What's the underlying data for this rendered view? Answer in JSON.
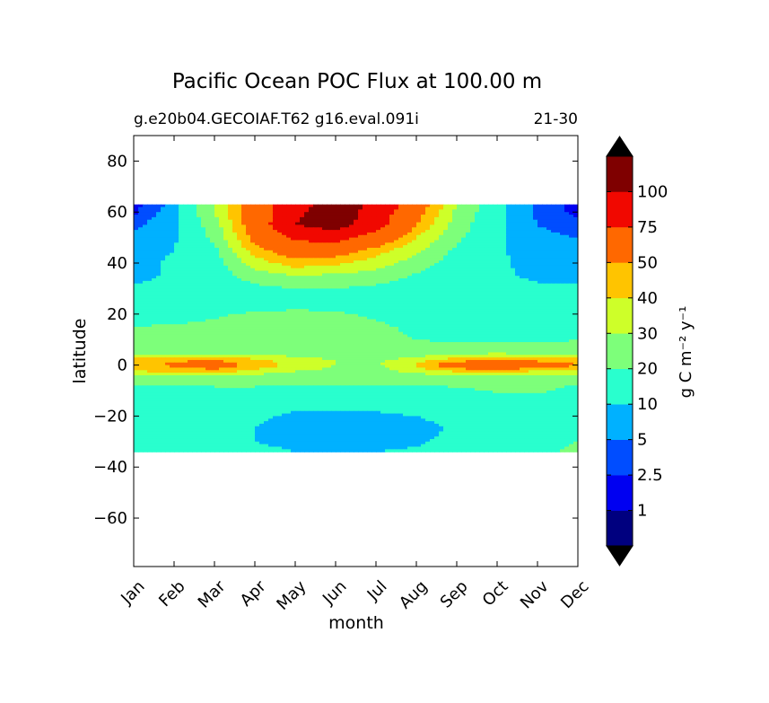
{
  "chart_data": {
    "type": "heatmap",
    "title": "Pacific Ocean POC Flux at 100.00 m",
    "subtitle_left": "g.e20b04.GECOIAF.T62 g16.eval.091i",
    "subtitle_right": "21-30",
    "xlabel": "month",
    "ylabel": "latitude",
    "x_categories": [
      "Jan",
      "Feb",
      "Mar",
      "Apr",
      "May",
      "Jun",
      "Jul",
      "Aug",
      "Sep",
      "Oct",
      "Nov",
      "Dec"
    ],
    "y_ticks": [
      80,
      60,
      40,
      20,
      0,
      -20,
      -40,
      -60
    ],
    "y_tick_labels": [
      "80",
      "60",
      "40",
      "20",
      "0",
      "−20",
      "−40",
      "−60"
    ],
    "ylim": [
      -79,
      90
    ],
    "data_lat_range": [
      -34,
      63
    ],
    "colorbar": {
      "label": "g C m⁻² y⁻¹",
      "levels": [
        1,
        2.5,
        5,
        10,
        20,
        30,
        40,
        50,
        75,
        100
      ],
      "level_labels": [
        "1",
        "2.5",
        "5",
        "10",
        "20",
        "30",
        "40",
        "50",
        "75",
        "100"
      ],
      "colors": [
        "#00007f",
        "#0000f1",
        "#004dff",
        "#00b1ff",
        "#29ffce",
        "#7dff7a",
        "#ceff29",
        "#ffc400",
        "#ff6800",
        "#f10800",
        "#7f0000"
      ],
      "extend_low_color": "#000000",
      "extend_high_color": "#000000"
    },
    "field": {
      "description_lat": [
        63,
        60,
        55,
        50,
        45,
        40,
        35,
        30,
        25,
        20,
        15,
        10,
        5,
        2,
        0,
        -2,
        -5,
        -8,
        -10,
        -15,
        -20,
        -25,
        -30,
        -34
      ],
      "month_centers": [
        "Jan",
        "Feb",
        "Mar",
        "Apr",
        "May",
        "Jun",
        "Jul",
        "Aug",
        "Sep",
        "Oct",
        "Nov",
        "Dec"
      ],
      "values": [
        [
          1.5,
          6,
          30,
          60,
          90,
          110,
          95,
          60,
          30,
          12,
          4,
          1.5
        ],
        [
          2,
          7,
          30,
          60,
          95,
          115,
          90,
          55,
          28,
          12,
          4,
          2
        ],
        [
          4,
          8,
          25,
          60,
          100,
          110,
          85,
          50,
          25,
          11,
          5,
          3
        ],
        [
          6,
          9,
          22,
          55,
          80,
          85,
          65,
          40,
          22,
          11,
          6,
          5
        ],
        [
          7,
          10,
          18,
          45,
          60,
          58,
          45,
          32,
          18,
          11,
          7,
          6
        ],
        [
          8,
          11,
          15,
          35,
          45,
          42,
          35,
          25,
          15,
          11,
          8,
          7
        ],
        [
          8,
          11,
          14,
          25,
          30,
          28,
          25,
          19,
          13,
          11,
          9,
          8
        ],
        [
          11,
          13,
          15,
          17,
          20,
          20,
          18,
          15,
          13,
          12,
          11,
          11
        ],
        [
          12,
          13,
          14,
          15,
          16,
          16,
          15,
          14,
          13,
          12,
          12,
          12
        ],
        [
          15,
          16,
          19,
          21,
          22,
          21,
          19,
          16,
          13,
          12,
          12,
          13
        ],
        [
          20,
          21,
          22,
          23,
          23,
          22,
          21,
          19,
          17,
          14,
          14,
          16
        ],
        [
          21,
          22,
          23,
          23,
          23,
          22,
          21,
          20,
          19,
          17,
          18,
          20
        ],
        [
          23,
          24,
          25,
          24,
          23,
          22,
          21,
          22,
          25,
          27,
          25,
          24
        ],
        [
          45,
          48,
          50,
          42,
          35,
          30,
          28,
          35,
          45,
          48,
          45,
          45
        ],
        [
          48,
          52,
          60,
          45,
          38,
          30,
          28,
          42,
          60,
          70,
          65,
          50
        ],
        [
          42,
          45,
          48,
          40,
          32,
          28,
          27,
          35,
          45,
          48,
          42,
          42
        ],
        [
          25,
          24,
          23,
          22,
          21,
          21,
          21,
          22,
          23,
          23,
          23,
          23
        ],
        [
          19,
          20,
          21,
          21,
          21,
          21,
          20,
          20,
          21,
          22,
          21,
          20
        ],
        [
          15,
          16,
          17,
          17,
          16,
          15,
          15,
          16,
          18,
          21,
          21,
          18
        ],
        [
          13,
          13,
          13,
          13,
          12,
          12,
          12,
          13,
          14,
          15,
          16,
          15
        ],
        [
          12,
          12,
          12,
          11,
          9,
          9,
          9,
          10,
          12,
          13,
          14,
          14
        ],
        [
          12,
          12,
          11,
          10,
          8,
          7,
          7,
          8,
          11,
          12,
          14,
          16
        ],
        [
          11,
          11,
          11,
          10,
          9,
          8,
          8,
          9,
          12,
          15,
          18,
          20
        ],
        [
          11,
          11,
          11,
          11,
          10,
          10,
          10,
          11,
          13,
          16,
          19,
          21
        ]
      ]
    },
    "grid": false,
    "colorbar_position": "right"
  }
}
